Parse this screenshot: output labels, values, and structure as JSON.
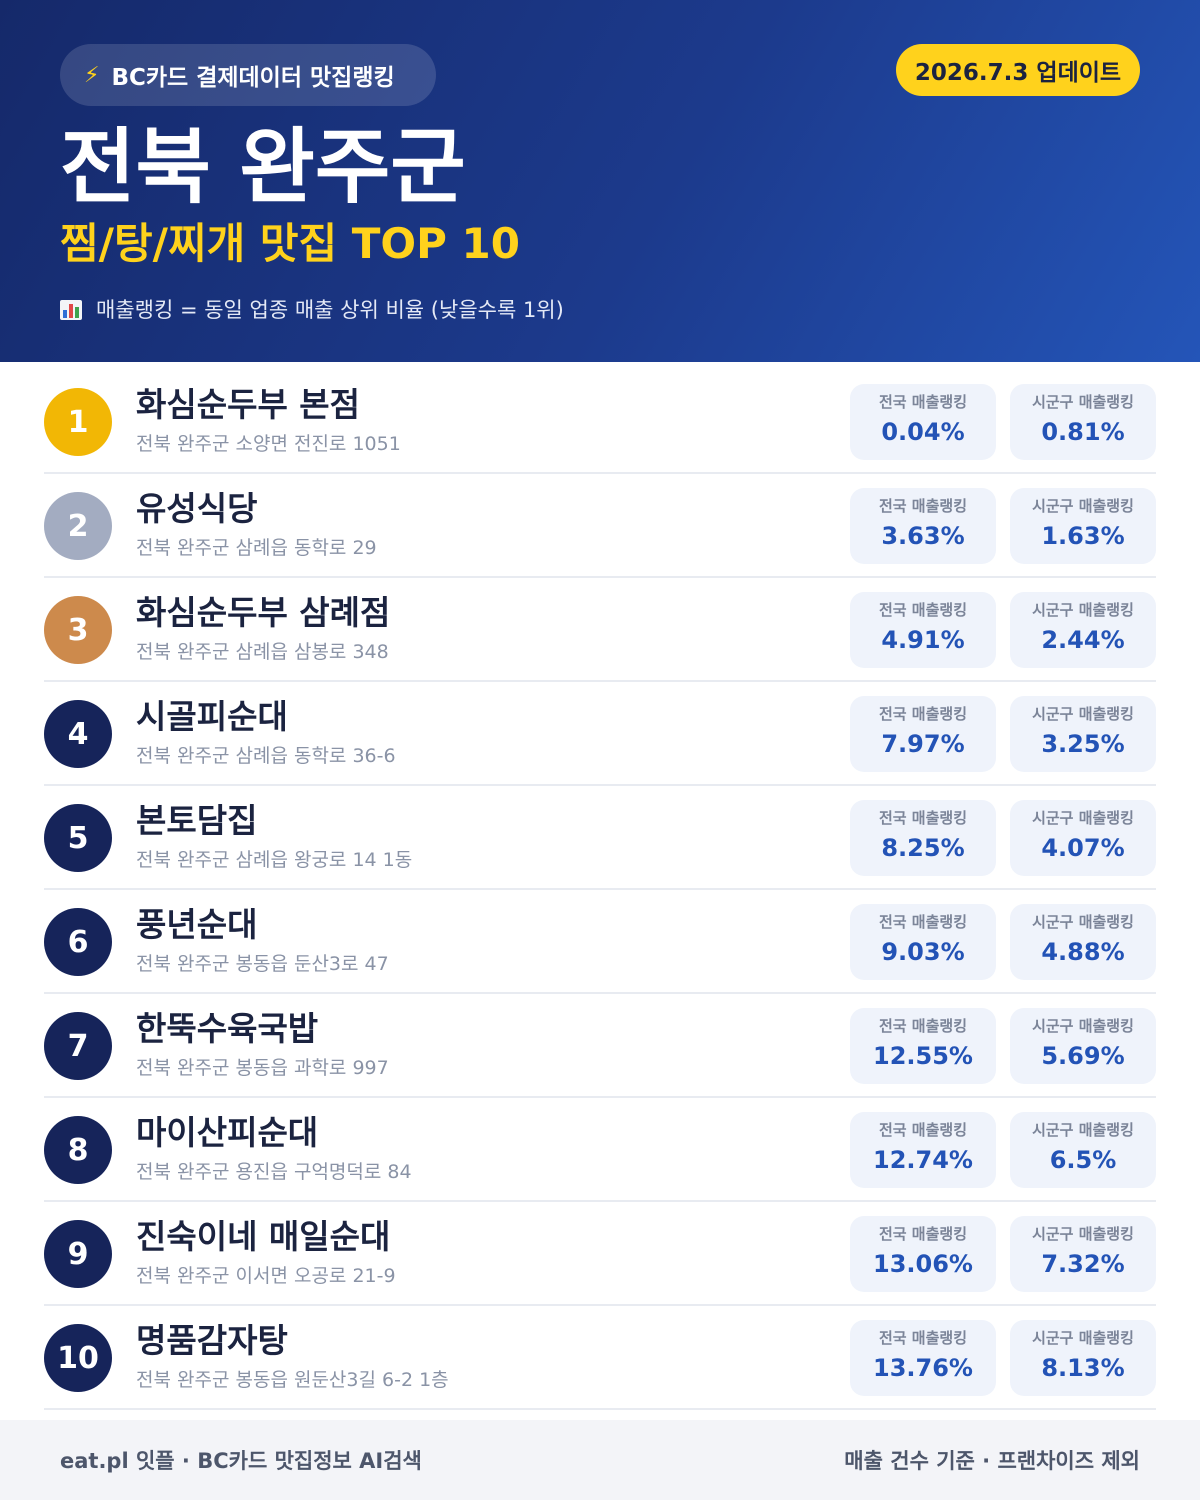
{
  "header": {
    "source_icon": "lightning-bolt-icon",
    "source_bolt": "⚡",
    "source_label": "BC카드 결제데이터 맛집랭킹",
    "update_label": "2026.7.3 업데이트",
    "region": "전북 완주군",
    "category": "찜/탕/찌개 맛집 TOP 10",
    "metric_icon": "bar-chart-icon",
    "metric_note": "매출랭킹 = 동일 업종 매출 상위 비율 (낮을수록 1위)"
  },
  "colors": {
    "gold": "#f2b705",
    "silver": "#a3acc1",
    "bronze": "#cd8a4c",
    "navy": "#16245a",
    "accent_yellow": "#ffd21c",
    "value_blue": "#2353b6"
  },
  "labels": {
    "national": "전국 매출랭킹",
    "local": "시군구 매출랭킹"
  },
  "restaurants": [
    {
      "rank": "1",
      "name": "화심순두부 본점",
      "address": "전북 완주군 소양면 전진로 1051",
      "national": "0.04%",
      "local": "0.81%"
    },
    {
      "rank": "2",
      "name": "유성식당",
      "address": "전북 완주군 삼례읍 동학로 29",
      "national": "3.63%",
      "local": "1.63%"
    },
    {
      "rank": "3",
      "name": "화심순두부 삼례점",
      "address": "전북 완주군 삼례읍 삼봉로 348",
      "national": "4.91%",
      "local": "2.44%"
    },
    {
      "rank": "4",
      "name": "시골피순대",
      "address": "전북 완주군 삼례읍 동학로 36-6",
      "national": "7.97%",
      "local": "3.25%"
    },
    {
      "rank": "5",
      "name": "본토담집",
      "address": "전북 완주군 삼례읍 왕궁로 14 1동",
      "national": "8.25%",
      "local": "4.07%"
    },
    {
      "rank": "6",
      "name": "풍년순대",
      "address": "전북 완주군 봉동읍 둔산3로 47",
      "national": "9.03%",
      "local": "4.88%"
    },
    {
      "rank": "7",
      "name": "한뚝수육국밥",
      "address": "전북 완주군 봉동읍 과학로 997",
      "national": "12.55%",
      "local": "5.69%"
    },
    {
      "rank": "8",
      "name": "마이산피순대",
      "address": "전북 완주군 용진읍 구억명덕로 84",
      "national": "12.74%",
      "local": "6.5%"
    },
    {
      "rank": "9",
      "name": "진숙이네 매일순대",
      "address": "전북 완주군 이서면 오공로 21-9",
      "national": "13.06%",
      "local": "7.32%"
    },
    {
      "rank": "10",
      "name": "명품감자탕",
      "address": "전북 완주군 봉동읍 원둔산3길 6-2 1층",
      "national": "13.76%",
      "local": "8.13%"
    }
  ],
  "footer": {
    "left": "eat.pl 잇플 · BC카드 맛집정보 AI검색",
    "right": "매출 건수 기준 · 프랜차이즈 제외"
  }
}
